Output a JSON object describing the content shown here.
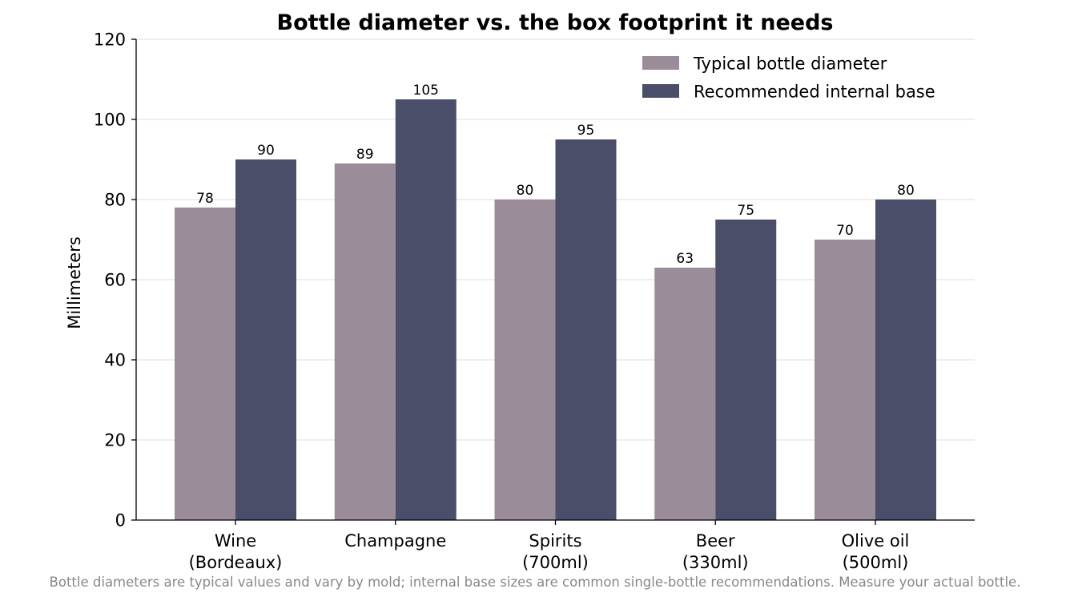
{
  "chart_data": {
    "type": "bar",
    "title": "Bottle diameter vs. the box footprint it needs",
    "xlabel": "",
    "ylabel": "Millimeters",
    "categories": [
      [
        "Wine",
        "(Bordeaux)"
      ],
      [
        "Champagne"
      ],
      [
        "Spirits",
        "(700ml)"
      ],
      [
        "Beer",
        "(330ml)"
      ],
      [
        "Olive oil",
        "(500ml)"
      ]
    ],
    "series": [
      {
        "name": "Typical bottle diameter",
        "color": "#9b8c99",
        "values": [
          78,
          89,
          80,
          63,
          70
        ]
      },
      {
        "name": "Recommended internal base",
        "color": "#4a4e69",
        "values": [
          90,
          105,
          95,
          75,
          80
        ]
      }
    ],
    "ylim": [
      0,
      120
    ],
    "yticks": [
      0,
      20,
      40,
      60,
      80,
      100,
      120
    ],
    "grid": "horizontal",
    "legend_position": "top-right",
    "data_labels": true,
    "footnote": "Bottle diameters are typical values and vary by mold; internal base sizes are common single-bottle recommendations. Measure your actual bottle."
  }
}
